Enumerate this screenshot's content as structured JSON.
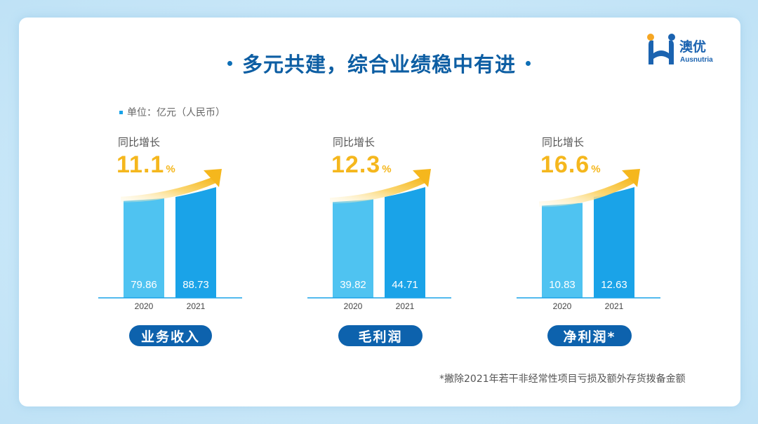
{
  "title": "多元共建，综合业绩稳中有进",
  "logo": {
    "name": "澳优",
    "sub": "Ausnutria"
  },
  "unit_label": "单位：亿元（人民币）",
  "footnote": "*撇除2021年若干非经常性项目亏损及额外存货拨备金额",
  "colors": {
    "bar_2020": "#4fc3f1",
    "bar_2021": "#1aa3e8",
    "accent": "#f5b71d",
    "pill": "#0d62ad",
    "title": "#0d5ea3"
  },
  "chart_data": [
    {
      "type": "bar",
      "title": "业务收入",
      "categories": [
        "2020",
        "2021"
      ],
      "values": [
        79.86,
        88.73
      ],
      "growth_label": "同比增长",
      "growth": "11.1",
      "growth_unit": "%"
    },
    {
      "type": "bar",
      "title": "毛利润",
      "categories": [
        "2020",
        "2021"
      ],
      "values": [
        39.82,
        44.71
      ],
      "growth_label": "同比增长",
      "growth": "12.3",
      "growth_unit": "%"
    },
    {
      "type": "bar",
      "title": "净利润*",
      "categories": [
        "2020",
        "2021"
      ],
      "values": [
        10.83,
        12.63
      ],
      "growth_label": "同比增长",
      "growth": "16.6",
      "growth_unit": "%"
    }
  ]
}
